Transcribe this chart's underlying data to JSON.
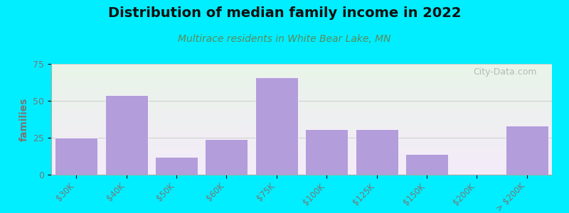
{
  "title": "Distribution of median family income in 2022",
  "subtitle": "Multirace residents in White Bear Lake, MN",
  "title_color": "#111111",
  "subtitle_color": "#5a8a5a",
  "categories": [
    "$30K",
    "$40K",
    "$50K",
    "$60K",
    "$75K",
    "$100K",
    "$125K",
    "$150K",
    "$200K",
    "> $200K"
  ],
  "values": [
    25,
    54,
    12,
    24,
    66,
    31,
    31,
    14,
    0,
    33
  ],
  "bar_color": "#b39ddb",
  "background_outer": "#00eeff",
  "ylabel": "families",
  "ylim": [
    0,
    75
  ],
  "yticks": [
    0,
    25,
    50,
    75
  ],
  "grid_color": "#cccccc",
  "watermark": "City-Data.com",
  "tick_color": "#777777",
  "title_fontsize": 14,
  "subtitle_fontsize": 10
}
